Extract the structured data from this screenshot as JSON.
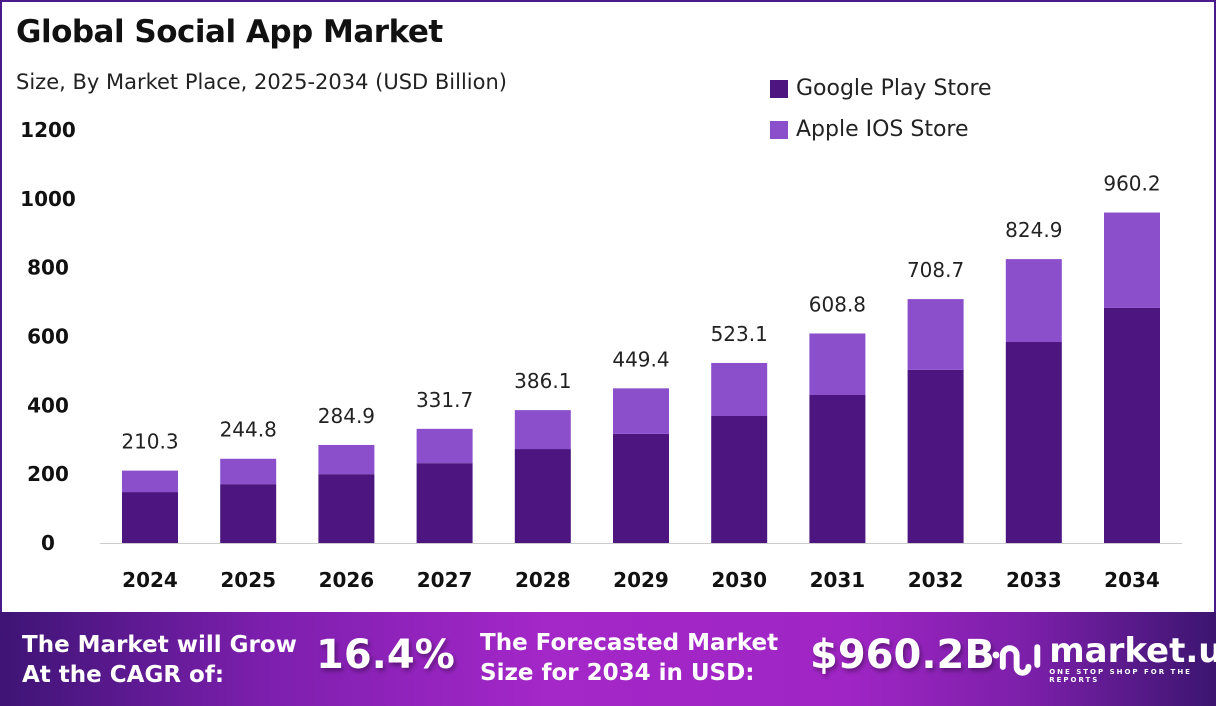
{
  "chart_data": {
    "type": "bar",
    "stacked": true,
    "title": "Global Social App Market",
    "subtitle": "Size, By Market Place, 2025-2034 (USD Billion)",
    "categories": [
      "2024",
      "2025",
      "2026",
      "2027",
      "2028",
      "2029",
      "2030",
      "2031",
      "2032",
      "2033",
      "2034"
    ],
    "series": [
      {
        "name": "Google Play Store",
        "color": "#4d1580",
        "values": [
          148,
          171,
          200,
          232,
          273,
          317,
          369,
          430,
          503,
          584,
          683
        ]
      },
      {
        "name": "Apple IOS Store",
        "color": "#8b4fcc",
        "values": [
          62.3,
          73.8,
          84.9,
          99.7,
          113.1,
          132.4,
          154.1,
          178.8,
          205.7,
          240.9,
          277.2
        ]
      }
    ],
    "totals": [
      "210.3",
      "244.8",
      "284.9",
      "331.7",
      "386.1",
      "449.4",
      "523.1",
      "608.8",
      "708.7",
      "824.9",
      "960.2"
    ],
    "ylim": [
      0,
      1200
    ],
    "yticks": [
      "0",
      "200",
      "400",
      "600",
      "800",
      "1000",
      "1200"
    ],
    "grid": false,
    "legend_position": "top-right"
  },
  "footer": {
    "cagr_label_line1": "The Market will Grow",
    "cagr_label_line2": "At the CAGR of:",
    "cagr_value": "16.4%",
    "forecast_label_line1": "The Forecasted Market",
    "forecast_label_line2": "Size for 2034 in USD:",
    "forecast_value": "$960.2B",
    "brand_name": "market.us",
    "brand_tagline": "ONE STOP SHOP FOR THE REPORTS"
  }
}
